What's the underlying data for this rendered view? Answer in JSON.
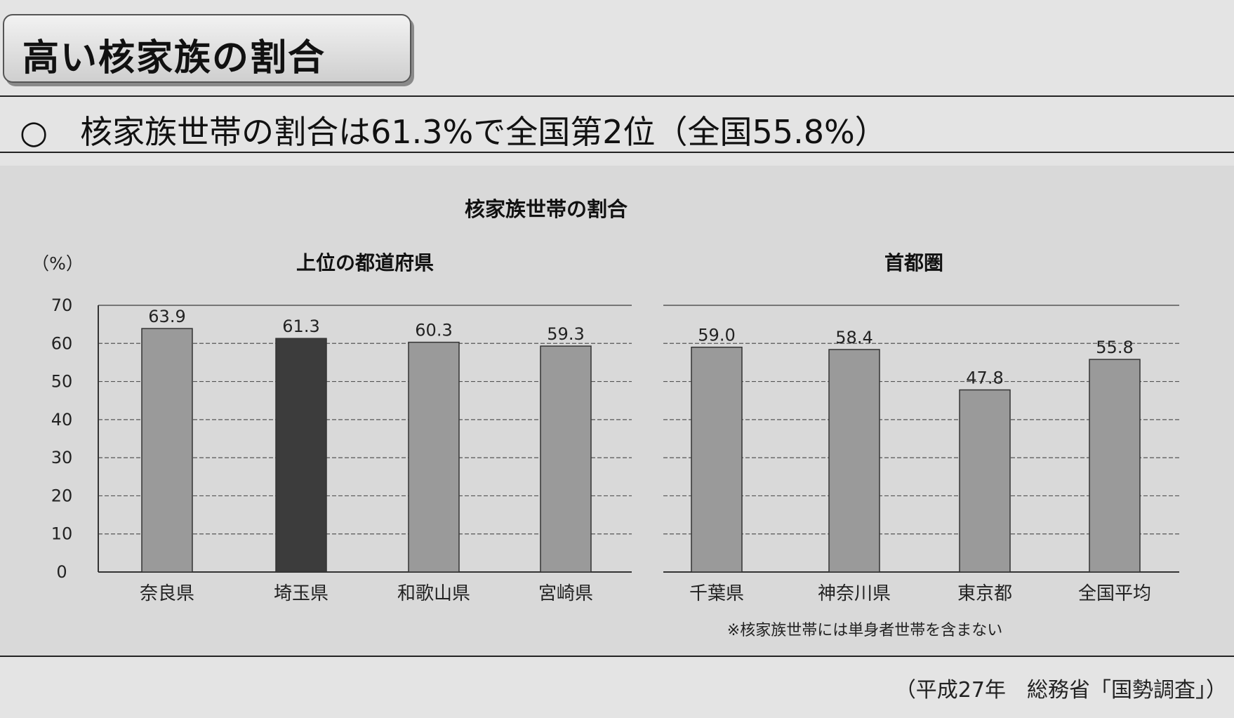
{
  "header": {
    "title": "高い核家族の割合",
    "headline": "○　核家族世帯の割合は61.3%で全国第2位（全国55.8%）"
  },
  "chart_data": {
    "type": "bar",
    "title": "核家族世帯の割合",
    "ylabel": "（%）",
    "ylim": [
      0,
      70
    ],
    "yticks": [
      "0",
      "10",
      "20",
      "30",
      "40",
      "50",
      "60",
      "70"
    ],
    "grid": true,
    "note": "※核家族世帯には単身者世帯を含まない",
    "colors": {
      "bar": "#9a9a9a",
      "highlight": "#3c3c3c"
    },
    "panels": [
      {
        "title": "上位の都道府県",
        "categories": [
          "奈良県",
          "埼玉県",
          "和歌山県",
          "宮崎県"
        ],
        "values": [
          63.9,
          61.3,
          60.3,
          59.3
        ],
        "labels": [
          "63.9",
          "61.3",
          "60.3",
          "59.3"
        ],
        "highlight_index": 1
      },
      {
        "title": "首都圏",
        "categories": [
          "千葉県",
          "神奈川県",
          "東京都",
          "全国平均"
        ],
        "values": [
          59.0,
          58.4,
          47.8,
          55.8
        ],
        "labels": [
          "59.0",
          "58.4",
          "47.8",
          "55.8"
        ],
        "highlight_index": -1
      }
    ]
  },
  "source": "（平成27年　総務省「国勢調査」）"
}
